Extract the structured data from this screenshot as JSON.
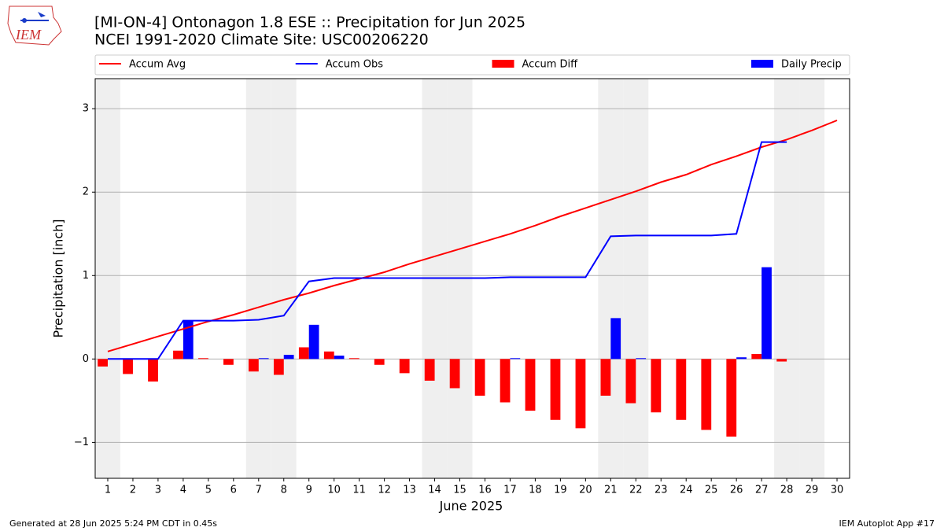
{
  "logo_text": "IEM",
  "footer_left": "Generated at 28 Jun 2025 5:24 PM CDT in 0.45s",
  "footer_right": "IEM Autoplot App #17",
  "chart_data": {
    "type": "combo",
    "title": "[MI-ON-4] Ontonagon 1.8 ESE :: Precipitation for Jun 2025",
    "subtitle": "NCEI 1991-2020 Climate Site: USC00206220",
    "x_label": "June 2025",
    "y_label": "Precipitation [inch]",
    "x": [
      1,
      2,
      3,
      4,
      5,
      6,
      7,
      8,
      9,
      10,
      11,
      12,
      13,
      14,
      15,
      16,
      17,
      18,
      19,
      20,
      21,
      22,
      23,
      24,
      25,
      26,
      27,
      28,
      29,
      30
    ],
    "xlim": [
      0.5,
      30.5
    ],
    "xticks": [
      1,
      2,
      3,
      4,
      5,
      6,
      7,
      8,
      9,
      10,
      11,
      12,
      13,
      14,
      15,
      16,
      17,
      18,
      19,
      20,
      21,
      22,
      23,
      24,
      25,
      26,
      27,
      28,
      29,
      30
    ],
    "ylim": [
      -1.43,
      3.36
    ],
    "yticks": [
      {
        "value": -1,
        "label": "−1"
      },
      0,
      1,
      2,
      3
    ],
    "grid": true,
    "shaded_days": [
      1,
      7,
      8,
      14,
      15,
      21,
      22,
      28,
      29
    ],
    "shade_color": "#efefef",
    "series": [
      {
        "name": "Accum Avg",
        "kind": "line",
        "color": "#ff0000",
        "values": [
          0.09,
          0.18,
          0.27,
          0.36,
          0.45,
          0.53,
          0.62,
          0.71,
          0.79,
          0.88,
          0.96,
          1.04,
          1.14,
          1.23,
          1.32,
          1.41,
          1.5,
          1.6,
          1.71,
          1.81,
          1.91,
          2.01,
          2.12,
          2.21,
          2.33,
          2.43,
          2.54,
          2.63,
          2.74,
          2.86
        ]
      },
      {
        "name": "Accum Obs",
        "kind": "line",
        "color": "#0000ff",
        "values": [
          0,
          0,
          0,
          0.46,
          0.46,
          0.46,
          0.47,
          0.52,
          0.93,
          0.97,
          0.97,
          0.97,
          0.97,
          0.97,
          0.97,
          0.97,
          0.98,
          0.98,
          0.98,
          0.98,
          1.47,
          1.48,
          1.48,
          1.48,
          1.48,
          1.5,
          2.6,
          2.6,
          null,
          null
        ]
      },
      {
        "name": "Accum Diff",
        "kind": "bar",
        "color": "#ff0000",
        "values": [
          -0.09,
          -0.18,
          -0.27,
          0.1,
          0.01,
          -0.07,
          -0.15,
          -0.19,
          0.14,
          0.09,
          0.01,
          -0.07,
          -0.17,
          -0.26,
          -0.35,
          -0.44,
          -0.52,
          -0.62,
          -0.73,
          -0.83,
          -0.44,
          -0.53,
          -0.64,
          -0.73,
          -0.85,
          -0.93,
          0.06,
          -0.03,
          null,
          null
        ]
      },
      {
        "name": "Daily Precip",
        "kind": "bar",
        "color": "#0000ff",
        "values": [
          0,
          0,
          0,
          0.46,
          0,
          0,
          0.01,
          0.05,
          0.41,
          0.04,
          0,
          0,
          0,
          0,
          0,
          0,
          0.01,
          0,
          0,
          0,
          0.49,
          0.01,
          0,
          0,
          0,
          0.02,
          1.1,
          0,
          null,
          null
        ]
      }
    ]
  }
}
